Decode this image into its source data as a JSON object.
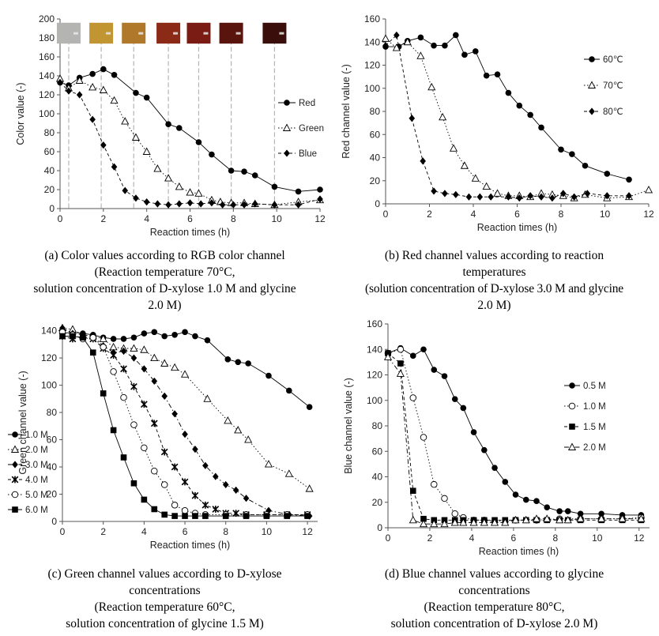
{
  "chart_data": [
    {
      "panel": "a",
      "type": "line",
      "xlabel": "Reaction times (h)",
      "ylabel": "Color value (-)",
      "xlim": [
        0,
        12
      ],
      "ylim": [
        0,
        200
      ],
      "xticks": [
        "0",
        "2",
        "4",
        "6",
        "8",
        "10",
        "12"
      ],
      "yticks": [
        "0",
        "20",
        "40",
        "60",
        "80",
        "100",
        "120",
        "140",
        "160",
        "180",
        "200"
      ],
      "caption": [
        "(a) Color values according to RGB color channel",
        "(Reaction temperature 70°C,",
        "solution concentration of D-xylose 1.0 M and glycine",
        "2.0 M)"
      ],
      "swatch_times": [
        0.4,
        1.9,
        3.4,
        5,
        6.4,
        7.9,
        9.9
      ],
      "swatch_colors": [
        "#b4b4b2",
        "#c19632",
        "#b0782a",
        "#8b2a16",
        "#7a1c14",
        "#5a140e",
        "#3a0f0b"
      ],
      "legend_position": "right",
      "series": [
        {
          "name": "Red",
          "marker": "filled-circle",
          "line": "solid",
          "x": [
            0,
            0.4,
            0.9,
            1.5,
            2,
            2.5,
            3.5,
            4,
            5,
            5.5,
            6.4,
            7,
            7.9,
            8.5,
            9,
            9.9,
            11,
            12
          ],
          "y": [
            133,
            130,
            138,
            142,
            147,
            141,
            122,
            117,
            89,
            85,
            70,
            57,
            40,
            39,
            35,
            23,
            18,
            20
          ]
        },
        {
          "name": "Green",
          "marker": "open-triangle",
          "line": "dotted",
          "x": [
            0,
            0.4,
            0.9,
            1.5,
            2,
            2.5,
            3,
            3.5,
            4,
            4.5,
            5,
            5.5,
            6,
            6.4,
            7,
            7.4,
            7.9,
            8.5,
            9,
            9.9,
            11,
            12
          ],
          "y": [
            137,
            127,
            135,
            128,
            125,
            114,
            92,
            75,
            60,
            42,
            32,
            23,
            17,
            16,
            9,
            7,
            6,
            6,
            5,
            4,
            7,
            9
          ]
        },
        {
          "name": "Blue",
          "marker": "filled-diamond",
          "line": "dashed",
          "x": [
            0,
            0.4,
            0.9,
            1.5,
            2,
            2.5,
            3,
            3.5,
            4,
            4.5,
            5,
            5.5,
            6,
            6.5,
            7,
            7.5,
            8,
            8.5,
            9,
            9.9,
            11,
            12
          ],
          "y": [
            133,
            124,
            120,
            94,
            67,
            44,
            19,
            11,
            7,
            5,
            4,
            5,
            6,
            5,
            6,
            4,
            4,
            4,
            5,
            4,
            4,
            10
          ]
        }
      ]
    },
    {
      "panel": "b",
      "type": "line",
      "xlabel": "Reaction times (h)",
      "ylabel": "Red channel value (-)",
      "xlim": [
        0,
        12
      ],
      "ylim": [
        0,
        160
      ],
      "xticks": [
        "0",
        "2",
        "4",
        "6",
        "8",
        "10",
        "12"
      ],
      "yticks": [
        "0",
        "20",
        "40",
        "60",
        "80",
        "100",
        "120",
        "140",
        "160"
      ],
      "caption": [
        "(b) Red channel values according to reaction",
        "temperatures",
        "(solution concentration of D-xylose 3.0 M and glycine",
        "2.0 M)"
      ],
      "legend_position": "right",
      "series": [
        {
          "name": "60℃",
          "marker": "filled-circle",
          "line": "solid",
          "x": [
            0,
            0.6,
            1,
            1.6,
            2.2,
            2.7,
            3.2,
            3.6,
            4.1,
            4.6,
            5.1,
            5.6,
            6.1,
            6.6,
            7.1,
            8,
            8.5,
            9.1,
            10.1,
            11.1
          ],
          "y": [
            136,
            136,
            141,
            144,
            137,
            137,
            146,
            129,
            132,
            111,
            112,
            96,
            85,
            77,
            66,
            47,
            43,
            33,
            26,
            21
          ]
        },
        {
          "name": "70℃",
          "marker": "open-triangle",
          "line": "dotted",
          "x": [
            0,
            0.5,
            1,
            1.6,
            2.1,
            2.6,
            3.1,
            3.6,
            4.1,
            4.6,
            5.1,
            5.6,
            6.1,
            6.6,
            7.1,
            7.6,
            8.1,
            8.6,
            9.1,
            10.1,
            11.1,
            12
          ],
          "y": [
            143,
            135,
            140,
            128,
            101,
            75,
            48,
            33,
            22,
            15,
            9,
            7,
            7,
            6,
            9,
            8,
            7,
            5,
            8,
            5,
            6,
            12
          ]
        },
        {
          "name": "80℃",
          "marker": "filled-diamond",
          "line": "dashed",
          "x": [
            0,
            0.5,
            1.2,
            1.7,
            2.2,
            2.7,
            3.2,
            3.8,
            4.3,
            4.8,
            5.6,
            6.1,
            6.6,
            7.1,
            7.6,
            8.1,
            8.6,
            9.2,
            10.1,
            11.1
          ],
          "y": [
            137,
            146,
            74,
            37,
            11,
            9,
            8,
            6,
            6,
            6,
            6,
            5,
            7,
            6,
            5,
            9,
            6,
            9,
            7,
            7
          ]
        }
      ]
    },
    {
      "panel": "c",
      "type": "line",
      "xlabel": "Reaction times (h)",
      "ylabel": "Green channel value (-)",
      "xlim": [
        0,
        12.5
      ],
      "ylim": [
        0,
        145
      ],
      "xticks": [
        "0",
        "2",
        "4",
        "6",
        "8",
        "10",
        "12"
      ],
      "yticks": [
        "0",
        "20",
        "40",
        "60",
        "80",
        "100",
        "120",
        "140"
      ],
      "caption": [
        "(c) Green channel values according to D-xylose",
        "concentrations",
        "(Reaction temperature 60°C,",
        "solution concentration of glycine 1.5 M)"
      ],
      "legend_position": "bottom-left",
      "series": [
        {
          "name": "1.0 M",
          "marker": "filled-circle",
          "line": "solid",
          "x": [
            0,
            0.5,
            1,
            1.5,
            2,
            2.5,
            3,
            3.5,
            4,
            4.5,
            5,
            5.5,
            6,
            6.5,
            7.1,
            8.1,
            8.6,
            9.1,
            10.1,
            11.1,
            12.1
          ],
          "y": [
            138,
            139,
            138,
            137,
            135,
            134,
            134,
            135,
            138,
            139,
            136,
            137,
            139,
            136,
            133,
            119,
            117,
            116,
            107,
            96,
            84
          ]
        },
        {
          "name": "2.0 M",
          "marker": "open-triangle",
          "line": "dotted",
          "x": [
            0,
            0.5,
            1,
            1.5,
            2,
            2.5,
            3,
            3.5,
            4,
            4.5,
            5,
            5.5,
            6,
            7.1,
            8.1,
            8.6,
            9.1,
            10.1,
            11.1,
            12.1
          ],
          "y": [
            142,
            141,
            137,
            136,
            134,
            128,
            127,
            127,
            126,
            120,
            116,
            113,
            108,
            90,
            74,
            67,
            60,
            42,
            35,
            24
          ]
        },
        {
          "name": "3.0 M",
          "marker": "filled-diamond",
          "line": "dash-dot",
          "x": [
            0,
            0.5,
            1,
            1.5,
            2,
            2.5,
            3,
            3.5,
            4,
            4.5,
            5,
            5.5,
            6,
            6.5,
            7,
            7.5,
            8,
            8.5,
            9,
            10.1,
            11.1,
            12.1
          ],
          "y": [
            142,
            138,
            137,
            136,
            129,
            124,
            125,
            120,
            112,
            103,
            92,
            79,
            64,
            53,
            41,
            33,
            27,
            23,
            17,
            8,
            5,
            4
          ]
        },
        {
          "name": "4.0 M",
          "marker": "asterisk",
          "line": "dashed",
          "x": [
            0,
            0.5,
            1,
            1.5,
            2,
            2.5,
            3,
            3.5,
            4,
            4.5,
            5,
            5.5,
            6,
            6.5,
            7,
            7.5,
            8,
            8.5,
            9,
            10,
            11,
            12
          ],
          "y": [
            136,
            134,
            136,
            134,
            127,
            122,
            112,
            99,
            86,
            72,
            51,
            40,
            29,
            19,
            12,
            9,
            6,
            6,
            5,
            5,
            5,
            5
          ]
        },
        {
          "name": "5.0 M",
          "marker": "open-circle",
          "line": "dotted",
          "x": [
            0,
            0.5,
            1,
            1.5,
            2,
            2.5,
            3,
            3.5,
            4,
            4.5,
            5,
            5.5,
            6,
            6.5,
            7,
            8,
            9,
            10,
            11,
            12
          ],
          "y": [
            139,
            137,
            134,
            135,
            128,
            110,
            91,
            71,
            54,
            37,
            27,
            12,
            8,
            6,
            5,
            5,
            5,
            5,
            5,
            5
          ]
        },
        {
          "name": "6.0 M",
          "marker": "filled-square",
          "line": "solid",
          "x": [
            0,
            0.5,
            1,
            1.5,
            2,
            2.5,
            3,
            3.5,
            4,
            4.5,
            5,
            5.5,
            6,
            6.5,
            7,
            8,
            9,
            10,
            11,
            12
          ],
          "y": [
            136,
            136,
            135,
            124,
            94,
            67,
            47,
            28,
            16,
            9,
            5,
            4,
            4,
            4,
            4,
            4,
            4,
            4,
            4,
            4
          ]
        }
      ]
    },
    {
      "panel": "d",
      "type": "line",
      "xlabel": "Reaction times (h)",
      "ylabel": "Blue channel value (-)",
      "xlim": [
        0,
        12.5
      ],
      "ylim": [
        0,
        160
      ],
      "xticks": [
        "0",
        "2",
        "4",
        "6",
        "8",
        "10",
        "12"
      ],
      "yticks": [
        "0",
        "20",
        "40",
        "60",
        "80",
        "100",
        "120",
        "140",
        "160"
      ],
      "caption": [
        "(d) Blue channel values according to glycine",
        "concentrations",
        "(Reaction temperature 80°C,",
        "solution concentration of D-xylose 2.0 M)"
      ],
      "legend_position": "right",
      "series": [
        {
          "name": "0.5 M",
          "marker": "filled-circle",
          "line": "solid",
          "x": [
            0,
            0.6,
            1.2,
            1.7,
            2.2,
            2.7,
            3.2,
            3.6,
            4.1,
            4.6,
            5.1,
            5.6,
            6.1,
            6.6,
            7.1,
            7.6,
            8.2,
            8.6,
            9.2,
            10.2,
            11.2,
            12.1
          ],
          "y": [
            137,
            141,
            135,
            140,
            124,
            119,
            101,
            94,
            75,
            61,
            47,
            36,
            26,
            22,
            21,
            16,
            13,
            13,
            11,
            11,
            10,
            10
          ]
        },
        {
          "name": "1.0 M",
          "marker": "open-circle",
          "line": "dotted",
          "x": [
            0,
            0.6,
            1.2,
            1.7,
            2.2,
            2.7,
            3.2,
            3.6,
            4.1,
            4.6,
            5.1,
            6.1,
            7.1,
            8.2,
            9.2,
            10.2,
            11.2,
            12.1
          ],
          "y": [
            137,
            140,
            102,
            71,
            34,
            23,
            11,
            8,
            6,
            6,
            5,
            6,
            6,
            7,
            7,
            7,
            7,
            8
          ]
        },
        {
          "name": "1.5 M",
          "marker": "filled-square",
          "line": "dashed",
          "x": [
            0,
            0.6,
            1.2,
            1.7,
            2.2,
            2.7,
            3.2,
            3.6,
            4.1,
            4.6,
            5.1,
            5.6,
            6.1,
            6.6,
            7.1,
            7.6,
            8.2,
            8.6,
            9.2,
            10.2,
            11.2,
            12.1
          ],
          "y": [
            137,
            129,
            29,
            7,
            6,
            6,
            6,
            6,
            6,
            6,
            6,
            6,
            6,
            6,
            6,
            6,
            6,
            6,
            6,
            6,
            6,
            6
          ]
        },
        {
          "name": "2.0 M",
          "marker": "open-triangle",
          "line": "dash-dot",
          "x": [
            0,
            0.6,
            1.2,
            1.7,
            2.2,
            2.7,
            3.2,
            3.6,
            4.1,
            4.6,
            5.1,
            5.6,
            6.1,
            6.6,
            7.1,
            7.6,
            8.2,
            8.6,
            9.2,
            10.2,
            11.2,
            12.1
          ],
          "y": [
            134,
            121,
            6,
            3,
            3,
            3,
            4,
            4,
            4,
            4,
            4,
            4,
            6,
            6,
            7,
            7,
            6,
            6,
            7,
            7,
            7,
            7
          ]
        }
      ]
    }
  ]
}
